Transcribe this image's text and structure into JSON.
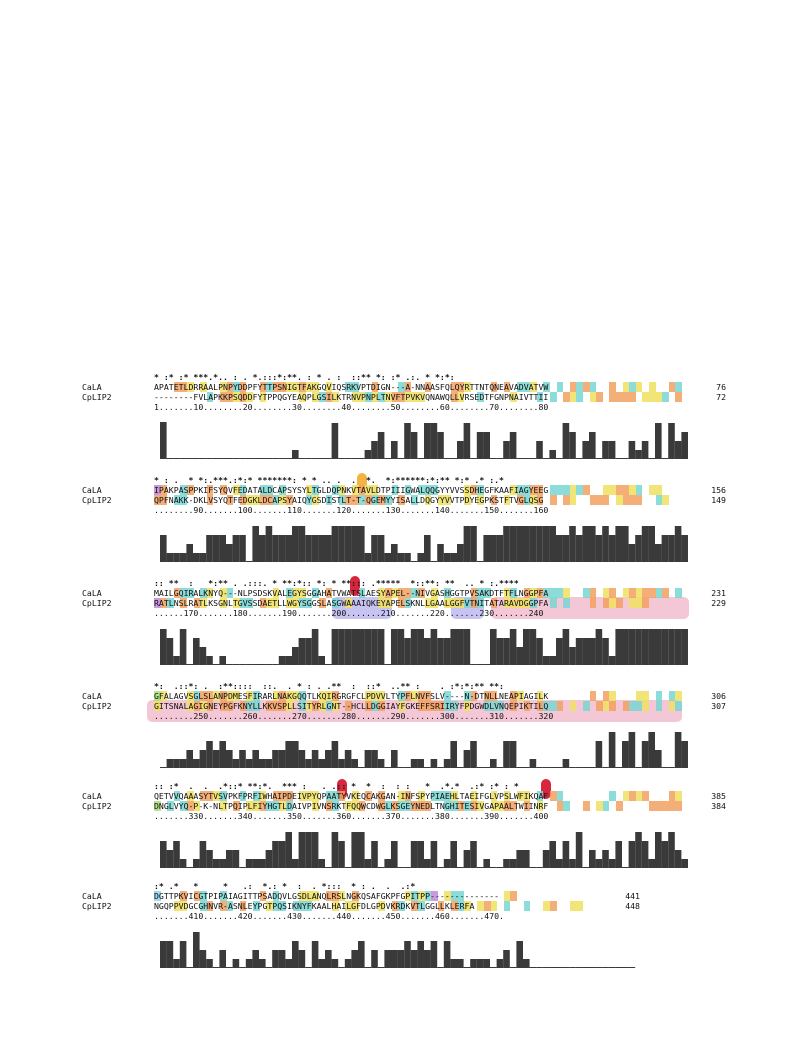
{
  "blocks": [
    {
      "cons": "* :* :* ***.*.. : . *.:::*:**. : * . :  ::** *: :* .:. * *:*:",
      "seqs": [
        {
          "name": "CaLA",
          "seq": "APATETLDRRAALPNPYDDPFYTTPSNIGTFAKGQVIQSRKVPTDIGN---A-NNAASFQLQYRTTNTQNEAVADVATVW",
          "end": "76"
        },
        {
          "name": "CpLIP2",
          "seq": "--------FVLAPKKPSQDDFYTPPQGYEAQPLGSILKTRNVPNPLTNVFTPVKVQNAWQLLVRSEDTFGNPNAIVTTII",
          "end": "72"
        }
      ],
      "ruler": "1.......10........20........30........40........50........60........70........80",
      "histo": [
        5,
        0,
        0,
        0,
        0,
        0,
        0,
        0,
        0,
        0,
        0,
        0,
        0,
        0,
        0,
        0,
        0,
        0,
        0,
        0,
        1,
        0,
        0,
        0,
        0,
        0,
        4,
        0,
        0,
        0,
        0,
        1,
        2,
        3,
        0,
        2,
        0,
        4,
        3,
        0,
        4,
        4,
        3,
        0,
        0,
        2,
        4,
        0,
        3,
        3,
        0,
        0,
        2,
        3,
        0,
        0,
        0,
        2,
        0,
        1,
        0,
        4,
        3,
        0,
        2,
        3,
        0,
        2,
        2,
        0,
        0,
        2,
        1,
        2,
        0,
        4,
        0,
        4,
        2,
        3
      ],
      "marks": [],
      "bands": [],
      "ruler_highlights": []
    },
    {
      "cons": "* : .  * *:.***.:*:* *******: * * .. .  .  *.  *:******:*:** *:* .* :.*",
      "seqs": [
        {
          "name": "CaLA",
          "seq": "IPAKPASPPKIFSYQVFEDATALDCAPSYSYLTGLDQPNKVTAVLDTPIIIGWALQQGYYVVSSDHEGFKAAFIAGYEEG",
          "end": "156"
        },
        {
          "name": "CpLIP2",
          "seq": "QPFNAKK-DKLVSYQTFEDGKLDCAPSYAIQYGSDISTLT-T-QGEMYYISALLDQGYYVVTPDYEGPKSTFTVGLQSG",
          "end": "149"
        }
      ],
      "ruler": "........90.......100.......110.......120.......130.......140.......150.......160",
      "histo": [
        3,
        1,
        1,
        1,
        2,
        1,
        1,
        3,
        3,
        3,
        2,
        3,
        3,
        0,
        4,
        3,
        4,
        3,
        3,
        3,
        4,
        4,
        3,
        3,
        3,
        3,
        4,
        4,
        4,
        4,
        4,
        1,
        3,
        3,
        1,
        2,
        1,
        1,
        0,
        1,
        3,
        0,
        2,
        1,
        1,
        2,
        4,
        4,
        0,
        3,
        3,
        3,
        4,
        4,
        4,
        4,
        4,
        4,
        4,
        4,
        3,
        3,
        4,
        3,
        4,
        4,
        3,
        4,
        3,
        4,
        4,
        2,
        3,
        4,
        4,
        2,
        3,
        3,
        4,
        3
      ],
      "marks": [
        {
          "pos": 31,
          "color": "orange"
        }
      ],
      "bands": [],
      "ruler_highlights": []
    },
    {
      "cons": ":: **  :   *:** . .:::. * **:*:: *: * **::: .*****  *::**: **  .. * :.****",
      "seqs": [
        {
          "name": "CaLA",
          "seq": "MAILGQIRALKNYQ---NLPSDSKVALEGYSGGAHATVWATSLAESYAPEL--NIVGASHGGTPVSAKDTFTFLNGGPFA",
          "end": "231"
        },
        {
          "name": "CpLIP2",
          "seq": "RATLNSLRATLKSGNLTGVSSDAETLLWGYSGGSLASGWAAAIQKEYAPELSKNLLGAALGGFVTNITATARAVDGGPFA",
          "end": "229"
        }
      ],
      "ruler": "......170.......180.......190.......200.......210.......220.......230.......240",
      "histo": [
        4,
        3,
        1,
        4,
        0,
        3,
        2,
        1,
        0,
        1,
        0,
        0,
        0,
        0,
        0,
        0,
        0,
        0,
        1,
        1,
        2,
        3,
        3,
        4,
        1,
        0,
        4,
        4,
        4,
        4,
        4,
        4,
        4,
        4,
        0,
        4,
        4,
        3,
        4,
        4,
        3,
        4,
        3,
        3,
        4,
        4,
        4,
        0,
        0,
        0,
        4,
        3,
        3,
        4,
        2,
        4,
        4,
        3,
        1,
        1,
        3,
        4,
        2,
        3,
        3,
        3,
        4,
        3,
        1,
        4,
        4,
        4,
        4,
        4,
        4,
        4,
        4,
        4,
        4,
        4
      ],
      "marks": [
        {
          "pos": 30,
          "color": "red"
        }
      ],
      "bands": [
        {
          "from": 27,
          "to": 36,
          "color": "violet"
        },
        {
          "from": 45,
          "to": 50,
          "color": "violet"
        },
        {
          "from": 51,
          "to": 81,
          "color": "pink"
        }
      ],
      "ruler_highlights": []
    },
    {
      "cons": "*:  .::*: .  :**::::  ::.  . * : . .**  :  ::*  ..** :    . :*:*:** **:",
      "seqs": [
        {
          "name": "CaLA",
          "seq": "GFALAGVSGLSLANPDMESFIRARLNAKGQQTLKQIRGRGFCLPDVVLTYPFLNVFSLV----N-DTNLLNEAPIAGILK",
          "end": "306"
        },
        {
          "name": "CpLIP2",
          "seq": "GITSNALAGIGNEYPGFKNYLLKKVSPLLSITYRLGNT--HCLLDGGIAYFGKEFFSRIIRYFPDGWDLVNQEPIKTILQ",
          "end": "307"
        }
      ],
      "ruler": "........250.......260.......270.......280.......290.......300.......310.......320",
      "histo": [
        0,
        1,
        1,
        1,
        2,
        1,
        2,
        3,
        2,
        3,
        2,
        1,
        2,
        1,
        2,
        1,
        1,
        2,
        2,
        3,
        3,
        2,
        1,
        2,
        1,
        2,
        3,
        1,
        2,
        1,
        0,
        2,
        2,
        1,
        0,
        2,
        0,
        0,
        1,
        1,
        0,
        1,
        0,
        1,
        3,
        0,
        2,
        3,
        0,
        0,
        1,
        0,
        3,
        3,
        0,
        0,
        1,
        0,
        0,
        0,
        0,
        1,
        0,
        0,
        0,
        0,
        3,
        0,
        4,
        0,
        3,
        4,
        0,
        3,
        4,
        2,
        0,
        0,
        4,
        3
      ],
      "marks": [],
      "bands": [
        {
          "from": -1,
          "to": 80,
          "color": "pink"
        }
      ],
      "ruler_highlights": []
    },
    {
      "cons": ":: :*  .  .  .*::* **:*.  *** :   . .:: *  *  :  : :   *  .*.*  .:* :* : *",
      "seqs": [
        {
          "name": "CaLA",
          "seq": "QETVVQAAASYTVSVPKFPRFIWHAIPDEIVPYQPAATYVKEQCAKGAN-INFSPYPIAEHLTAEIFGLVPSLWFIKQAF",
          "end": "385"
        },
        {
          "name": "CpLIP2",
          "seq": "DNGLVYQ-P-K-NLTPQIPLFIYHGTLDAIVPIVNSRKTFQQWCDWGLKSGEYNEDLTNGHITESIVGAPAALTWIINRF",
          "end": "384"
        }
      ],
      "ruler": ".......330.......340.......350.......360.......370.......380.......390.......400",
      "histo": [
        3,
        2,
        3,
        1,
        0,
        1,
        3,
        2,
        1,
        1,
        2,
        2,
        0,
        1,
        1,
        1,
        2,
        3,
        3,
        4,
        1,
        4,
        4,
        4,
        1,
        0,
        4,
        3,
        0,
        4,
        4,
        1,
        3,
        0,
        1,
        3,
        0,
        0,
        3,
        3,
        1,
        3,
        0,
        1,
        3,
        0,
        2,
        3,
        0,
        1,
        0,
        0,
        1,
        1,
        2,
        2,
        0,
        0,
        2,
        3,
        1,
        3,
        1,
        4,
        0,
        2,
        1,
        2,
        1,
        3,
        0,
        3,
        4,
        3,
        1,
        4,
        3,
        4,
        2,
        1
      ],
      "marks": [
        {
          "pos": 28,
          "color": "red"
        },
        {
          "pos": 59,
          "color": "red"
        }
      ],
      "bands": [],
      "ruler_highlights": []
    },
    {
      "cons": ":* .*   *     *   .:  *.: *  :  . *:::  * : .  .  .:*",
      "seqs": [
        {
          "name": "CaLA",
          "seq": "DGTTPKVICGTPIPAIAGITTPSADQVLGSDLANQLRSLNGKQSAFGKPFGPITPP--------------",
          "end": "441"
        },
        {
          "name": "CpLIP2",
          "seq": "NGQPPVDGCGHNVR-ASNLEYPGTPQSIKNYFKAALHAILGFDLGPDVKRDKVTLGGLLKLERFA",
          "end": "448"
        }
      ],
      "ruler": ".......410.......420.......430.......440.......450.......460.......470.",
      "histo": [
        3,
        3,
        1,
        3,
        0,
        4,
        2,
        1,
        0,
        2,
        0,
        1,
        0,
        1,
        2,
        1,
        0,
        2,
        2,
        1,
        3,
        2,
        0,
        3,
        1,
        2,
        1,
        0,
        1,
        2,
        3,
        0,
        2,
        0,
        2,
        2,
        2,
        3,
        2,
        3,
        2,
        3,
        0,
        3,
        1,
        1,
        0,
        1,
        1,
        1,
        0,
        1,
        2,
        0,
        3,
        1,
        0,
        0,
        0,
        0,
        0,
        0,
        0,
        0,
        0,
        0,
        0,
        0,
        0,
        0,
        0,
        0
      ],
      "marks": [],
      "bands": [],
      "ruler_highlights": []
    }
  ]
}
